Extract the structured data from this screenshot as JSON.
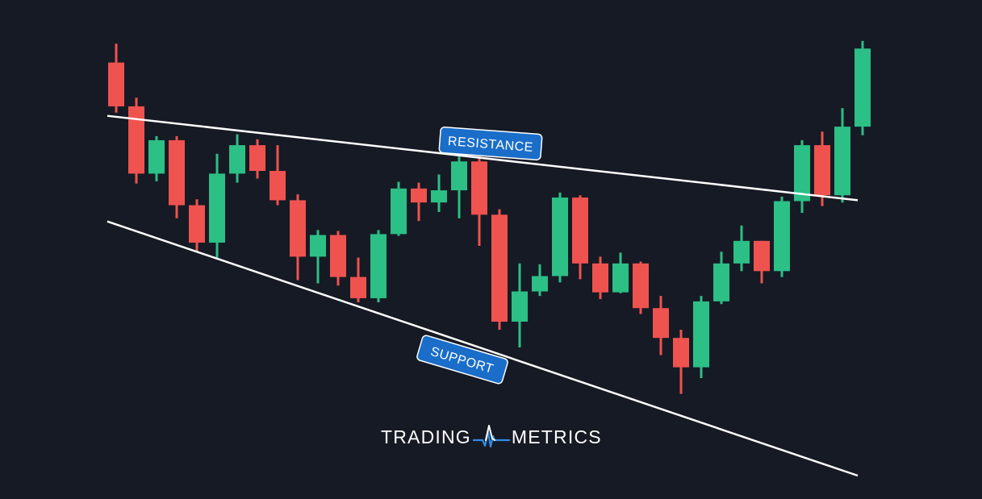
{
  "colors": {
    "background": "#161a24",
    "bullish": "#2cbf86",
    "bearish": "#ef5350",
    "trendline": "#ffffff",
    "label_bg": "#1a6ec9",
    "label_border": "#ffffff"
  },
  "chart_data": {
    "type": "candlestick",
    "title": "",
    "xlabel": "",
    "ylabel": "",
    "grid": false,
    "legend": "none",
    "ylim": [
      0,
      100
    ],
    "candles": [
      {
        "open": 91.5,
        "high": 95.7,
        "low": 80.4,
        "close": 81.8
      },
      {
        "open": 81.8,
        "high": 83.7,
        "low": 64.7,
        "close": 66.9
      },
      {
        "open": 66.9,
        "high": 75.2,
        "low": 65.2,
        "close": 74.3
      },
      {
        "open": 74.3,
        "high": 75.2,
        "low": 57.0,
        "close": 59.9
      },
      {
        "open": 59.9,
        "high": 61.2,
        "low": 49.6,
        "close": 51.6
      },
      {
        "open": 51.6,
        "high": 71.3,
        "low": 48.3,
        "close": 66.9
      },
      {
        "open": 66.9,
        "high": 75.6,
        "low": 64.9,
        "close": 73.2
      },
      {
        "open": 73.2,
        "high": 74.5,
        "low": 65.8,
        "close": 67.5
      },
      {
        "open": 67.5,
        "high": 73.2,
        "low": 59.9,
        "close": 61.0
      },
      {
        "open": 61.0,
        "high": 62.3,
        "low": 43.3,
        "close": 48.5
      },
      {
        "open": 48.5,
        "high": 54.4,
        "low": 42.6,
        "close": 53.3
      },
      {
        "open": 53.3,
        "high": 54.2,
        "low": 42.1,
        "close": 44.0
      },
      {
        "open": 44.0,
        "high": 48.3,
        "low": 38.4,
        "close": 39.3
      },
      {
        "open": 39.3,
        "high": 54.4,
        "low": 38.4,
        "close": 53.5
      },
      {
        "open": 53.5,
        "high": 65.1,
        "low": 53.1,
        "close": 63.6
      },
      {
        "open": 63.6,
        "high": 64.9,
        "low": 56.4,
        "close": 60.5
      },
      {
        "open": 60.5,
        "high": 66.7,
        "low": 58.4,
        "close": 63.2
      },
      {
        "open": 63.2,
        "high": 70.7,
        "low": 57.0,
        "close": 69.6
      },
      {
        "open": 69.6,
        "high": 70.7,
        "low": 50.9,
        "close": 57.8
      },
      {
        "open": 57.8,
        "high": 59.0,
        "low": 32.3,
        "close": 34.1
      },
      {
        "open": 34.1,
        "high": 47.0,
        "low": 28.4,
        "close": 40.8
      },
      {
        "open": 40.8,
        "high": 46.8,
        "low": 39.8,
        "close": 44.2
      },
      {
        "open": 44.2,
        "high": 62.7,
        "low": 42.8,
        "close": 61.6
      },
      {
        "open": 61.6,
        "high": 62.1,
        "low": 43.5,
        "close": 47.0
      },
      {
        "open": 47.0,
        "high": 48.5,
        "low": 39.1,
        "close": 40.6
      },
      {
        "open": 40.6,
        "high": 49.4,
        "low": 40.4,
        "close": 47.0
      },
      {
        "open": 47.0,
        "high": 47.4,
        "low": 35.8,
        "close": 37.1
      },
      {
        "open": 37.1,
        "high": 39.8,
        "low": 26.7,
        "close": 30.5
      },
      {
        "open": 30.5,
        "high": 32.3,
        "low": 18.1,
        "close": 24.0
      },
      {
        "open": 24.0,
        "high": 39.8,
        "low": 21.6,
        "close": 38.6
      },
      {
        "open": 38.6,
        "high": 49.6,
        "low": 38.0,
        "close": 47.0
      },
      {
        "open": 47.0,
        "high": 55.4,
        "low": 45.3,
        "close": 52.0
      },
      {
        "open": 52.0,
        "high": 52.0,
        "low": 42.6,
        "close": 45.3
      },
      {
        "open": 45.3,
        "high": 61.8,
        "low": 44.0,
        "close": 60.8
      },
      {
        "open": 60.8,
        "high": 74.3,
        "low": 58.2,
        "close": 73.2
      },
      {
        "open": 73.2,
        "high": 76.2,
        "low": 59.7,
        "close": 62.1
      },
      {
        "open": 62.1,
        "high": 81.4,
        "low": 60.5,
        "close": 77.3
      },
      {
        "open": 77.3,
        "high": 96.3,
        "low": 75.4,
        "close": 94.6
      }
    ],
    "trendlines": [
      {
        "name": "resistance",
        "start": [
          0,
          79.7
        ],
        "end": [
          37.2,
          61.0
        ]
      },
      {
        "name": "support",
        "start": [
          0,
          56.3
        ],
        "end": [
          37.2,
          0.0
        ]
      }
    ],
    "annotations": {
      "resistance": "RESISTANCE",
      "support": "SUPPORT"
    }
  },
  "logo": {
    "left_text": "TRADING",
    "right_text": "METRICS"
  }
}
